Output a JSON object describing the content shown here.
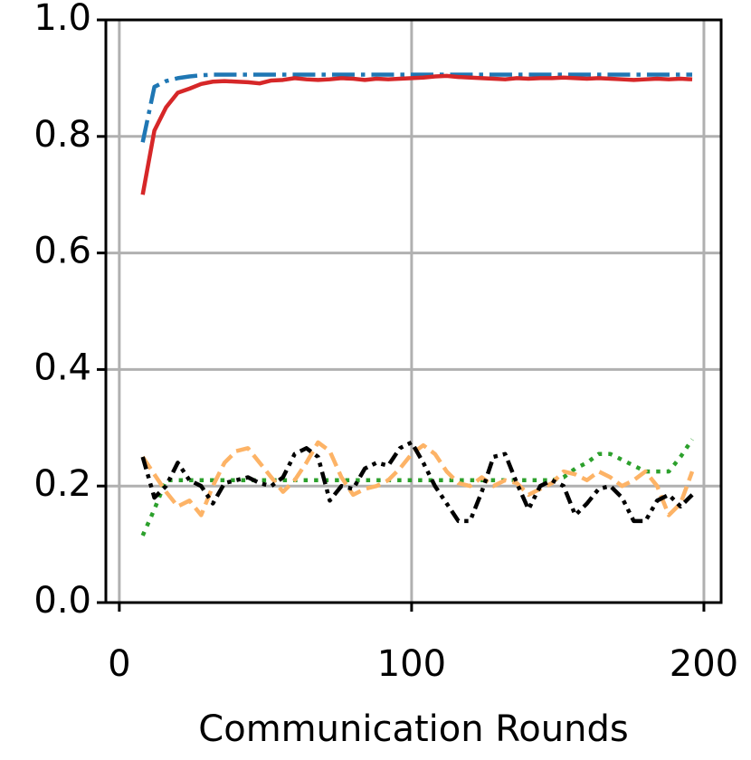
{
  "chart_data": {
    "type": "line",
    "xlabel": "Communication Rounds",
    "x": [
      8,
      12,
      16,
      20,
      24,
      28,
      32,
      36,
      40,
      44,
      48,
      52,
      56,
      60,
      64,
      68,
      72,
      76,
      80,
      84,
      88,
      92,
      96,
      100,
      104,
      108,
      112,
      116,
      120,
      124,
      128,
      132,
      136,
      140,
      144,
      148,
      152,
      156,
      160,
      164,
      168,
      172,
      176,
      180,
      184,
      188,
      192,
      196
    ],
    "series": [
      {
        "color": "#1f77b4",
        "linestyle": "dashdot",
        "values": [
          0.79,
          0.885,
          0.895,
          0.9,
          0.903,
          0.905,
          0.906,
          0.906,
          0.906,
          0.906,
          0.906,
          0.906,
          0.906,
          0.906,
          0.906,
          0.906,
          0.906,
          0.906,
          0.906,
          0.906,
          0.906,
          0.906,
          0.906,
          0.906,
          0.906,
          0.906,
          0.906,
          0.906,
          0.906,
          0.906,
          0.906,
          0.906,
          0.906,
          0.906,
          0.906,
          0.906,
          0.906,
          0.906,
          0.906,
          0.906,
          0.906,
          0.906,
          0.906,
          0.906,
          0.906,
          0.906,
          0.906,
          0.906
        ]
      },
      {
        "color": "#d62728",
        "linestyle": "solid",
        "values": [
          0.7,
          0.81,
          0.85,
          0.875,
          0.882,
          0.89,
          0.894,
          0.895,
          0.894,
          0.893,
          0.891,
          0.896,
          0.897,
          0.9,
          0.898,
          0.897,
          0.898,
          0.9,
          0.899,
          0.897,
          0.899,
          0.898,
          0.899,
          0.9,
          0.901,
          0.903,
          0.904,
          0.902,
          0.901,
          0.9,
          0.899,
          0.898,
          0.9,
          0.899,
          0.9,
          0.9,
          0.901,
          0.9,
          0.899,
          0.9,
          0.899,
          0.898,
          0.897,
          0.898,
          0.899,
          0.898,
          0.899,
          0.898
        ]
      },
      {
        "color": "#2ca02c",
        "linestyle": "dotted",
        "values": [
          0.115,
          0.16,
          0.21,
          0.21,
          0.21,
          0.21,
          0.21,
          0.21,
          0.21,
          0.21,
          0.21,
          0.21,
          0.21,
          0.21,
          0.21,
          0.21,
          0.21,
          0.21,
          0.21,
          0.21,
          0.21,
          0.21,
          0.21,
          0.21,
          0.21,
          0.21,
          0.21,
          0.21,
          0.21,
          0.21,
          0.21,
          0.21,
          0.21,
          0.21,
          0.21,
          0.21,
          0.215,
          0.23,
          0.24,
          0.255,
          0.255,
          0.245,
          0.235,
          0.225,
          0.225,
          0.225,
          0.25,
          0.28
        ]
      },
      {
        "color": "#fdb366",
        "linestyle": "dashed",
        "values": [
          0.25,
          0.22,
          0.19,
          0.165,
          0.175,
          0.15,
          0.2,
          0.24,
          0.26,
          0.265,
          0.24,
          0.215,
          0.19,
          0.21,
          0.24,
          0.275,
          0.26,
          0.215,
          0.185,
          0.195,
          0.2,
          0.21,
          0.23,
          0.255,
          0.27,
          0.255,
          0.225,
          0.205,
          0.2,
          0.215,
          0.2,
          0.21,
          0.205,
          0.185,
          0.195,
          0.205,
          0.225,
          0.22,
          0.21,
          0.225,
          0.215,
          0.2,
          0.21,
          0.225,
          0.2,
          0.15,
          0.17,
          0.225
        ]
      },
      {
        "color": "#000000",
        "linestyle": "dashdotdot",
        "values": [
          0.25,
          0.18,
          0.2,
          0.24,
          0.21,
          0.2,
          0.17,
          0.205,
          0.21,
          0.215,
          0.205,
          0.2,
          0.215,
          0.255,
          0.265,
          0.25,
          0.175,
          0.2,
          0.195,
          0.23,
          0.24,
          0.235,
          0.265,
          0.275,
          0.24,
          0.2,
          0.17,
          0.14,
          0.14,
          0.19,
          0.25,
          0.255,
          0.205,
          0.16,
          0.2,
          0.21,
          0.2,
          0.15,
          0.17,
          0.195,
          0.2,
          0.18,
          0.14,
          0.14,
          0.175,
          0.185,
          0.165,
          0.185
        ]
      }
    ],
    "xlim": [
      -4.6,
      205.9
    ],
    "xticks": [
      0,
      100,
      200
    ],
    "ylim": [
      0,
      1
    ],
    "yticks": [
      {
        "value": 0,
        "label": "0.0"
      },
      0.2,
      0.4,
      0.6,
      0.8,
      {
        "value": 1,
        "label": "1.0"
      }
    ],
    "grid": true
  }
}
